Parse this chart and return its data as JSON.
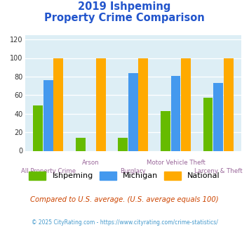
{
  "title_line1": "2019 Ishpeming",
  "title_line2": "Property Crime Comparison",
  "categories": [
    "All Property Crime",
    "Arson",
    "Burglary",
    "Motor Vehicle Theft",
    "Larceny & Theft"
  ],
  "ishpeming": [
    49,
    14,
    14,
    43,
    57
  ],
  "michigan": [
    76,
    0,
    84,
    81,
    73
  ],
  "national": [
    100,
    100,
    100,
    100,
    100
  ],
  "color_ishpeming": "#66bb00",
  "color_michigan": "#4499ee",
  "color_national": "#ffaa00",
  "ylabel_vals": [
    0,
    20,
    40,
    60,
    80,
    100,
    120
  ],
  "ylim": [
    0,
    125
  ],
  "bg_color": "#ddeef5",
  "legend_labels": [
    "Ishpeming",
    "Michigan",
    "National"
  ],
  "subtitle": "Compared to U.S. average. (U.S. average equals 100)",
  "footer": "© 2025 CityRating.com - https://www.cityrating.com/crime-statistics/",
  "title_color": "#2255cc",
  "subtitle_color": "#cc4400",
  "footer_color": "#4499cc",
  "xlabel_color": "#996699",
  "lower_labels": {
    "0": "All Property Crime",
    "2": "Burglary",
    "4": "Larceny & Theft"
  },
  "upper_labels": {
    "1": "Arson",
    "3": "Motor Vehicle Theft"
  }
}
